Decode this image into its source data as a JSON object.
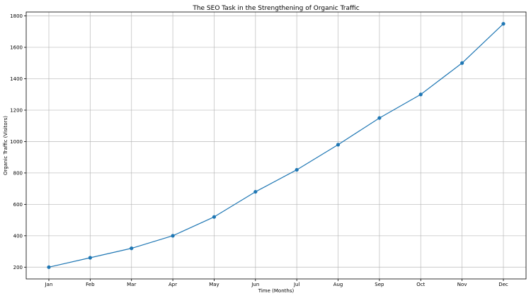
{
  "chart_data": {
    "type": "line",
    "title": "The SEO Task in the Strengthening of Organic Traffic",
    "xlabel": "Time (Months)",
    "ylabel": "Organic Traffic (Visitors)",
    "categories": [
      "Jan",
      "Feb",
      "Mar",
      "Apr",
      "May",
      "Jun",
      "Jul",
      "Aug",
      "Sep",
      "Oct",
      "Nov",
      "Dec"
    ],
    "series": [
      {
        "values": [
          200,
          260,
          320,
          400,
          520,
          680,
          820,
          980,
          1150,
          1300,
          1500,
          1750
        ],
        "color": "#1f77b4",
        "marker": "circle"
      }
    ],
    "ylim": [
      125,
      1825
    ],
    "yticks": [
      200,
      400,
      600,
      800,
      1000,
      1200,
      1400,
      1600,
      1800
    ],
    "grid": true,
    "legend": "none"
  }
}
